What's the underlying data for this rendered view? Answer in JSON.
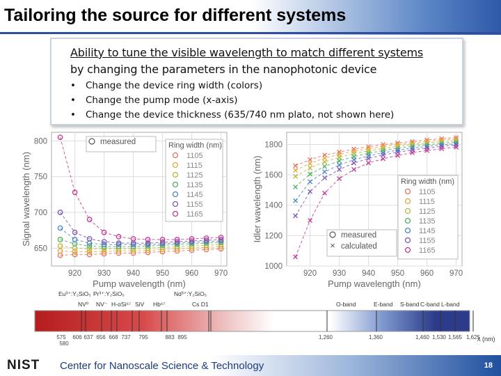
{
  "slide": {
    "title": "Tailoring the source for different systems",
    "callout": {
      "heading_line1": "Ability to tune the visible wavelength to match different systems",
      "heading_line2": "by changing the parameters in the nanophotonic device",
      "bullets": [
        "Change the device ring width (colors)",
        "Change the pump mode (x-axis)",
        "Change the device thickness (635/740 nm plato, not shown here)"
      ]
    },
    "footer": {
      "logo": "NIST",
      "org": "Center for Nanoscale Science & Technology",
      "page_number": "18"
    }
  },
  "chart_data": [
    {
      "type": "scatter",
      "ylabel": "Signal wavelength (nm)",
      "xlabel": "Pump wavelength (nm)",
      "xlim": [
        912,
        972
      ],
      "ylim": [
        625,
        812
      ],
      "x_ticks": [
        920,
        930,
        940,
        950,
        960,
        970
      ],
      "y_ticks": [
        650,
        700,
        750,
        800
      ],
      "legend_markers": [
        "measured"
      ],
      "legend_title": "Ring width (nm)",
      "legend_entries": [
        "1105",
        "1115",
        "1125",
        "1135",
        "1145",
        "1155",
        "1165"
      ],
      "colors": [
        "#e8705a",
        "#e9a53a",
        "#b9b83a",
        "#4fae5a",
        "#4a82c4",
        "#7a56b6",
        "#c2368f"
      ],
      "series": [
        {
          "name": "1105",
          "x": [
            915,
            920,
            925,
            930,
            935,
            940,
            945,
            950,
            955,
            960,
            965,
            970
          ],
          "y": [
            640,
            641,
            641,
            642,
            643,
            643,
            644,
            645,
            646,
            647,
            648,
            649
          ]
        },
        {
          "name": "1115",
          "x": [
            915,
            920,
            925,
            930,
            935,
            940,
            945,
            950,
            955,
            960,
            965,
            970
          ],
          "y": [
            646,
            645,
            645,
            645,
            646,
            646,
            647,
            648,
            649,
            650,
            651,
            652
          ]
        },
        {
          "name": "1125",
          "x": [
            915,
            920,
            925,
            930,
            935,
            940,
            945,
            950,
            955,
            960,
            965,
            970
          ],
          "y": [
            653,
            650,
            649,
            649,
            649,
            649,
            650,
            651,
            652,
            653,
            654,
            655
          ]
        },
        {
          "name": "1135",
          "x": [
            915,
            920,
            925,
            930,
            935,
            940,
            945,
            950,
            955,
            960,
            965,
            970
          ],
          "y": [
            662,
            656,
            653,
            652,
            652,
            652,
            653,
            654,
            655,
            656,
            657,
            658
          ]
        },
        {
          "name": "1145",
          "x": [
            915,
            920,
            925,
            930,
            935,
            940,
            945,
            950,
            955,
            960,
            965,
            970
          ],
          "y": [
            678,
            662,
            657,
            655,
            655,
            655,
            655,
            656,
            657,
            658,
            659,
            660
          ]
        },
        {
          "name": "1155",
          "x": [
            915,
            920,
            925,
            930,
            935,
            940,
            945,
            950,
            955,
            960,
            965,
            970
          ],
          "y": [
            700,
            672,
            663,
            659,
            657,
            657,
            657,
            658,
            659,
            660,
            661,
            662
          ]
        },
        {
          "name": "1165",
          "x": [
            915,
            920,
            925,
            930,
            935,
            940,
            945,
            950,
            955,
            960,
            965,
            970
          ],
          "y": [
            805,
            728,
            690,
            672,
            666,
            663,
            662,
            662,
            662,
            663,
            664,
            665
          ]
        }
      ]
    },
    {
      "type": "scatter",
      "ylabel": "Idler wavelength (nm)",
      "xlabel": "Pump wavelength (nm)",
      "xlim": [
        912,
        972
      ],
      "ylim": [
        1000,
        1880
      ],
      "x_ticks": [
        920,
        930,
        940,
        950,
        960,
        970
      ],
      "y_ticks": [
        1000,
        1200,
        1400,
        1600,
        1800
      ],
      "legend_markers": [
        "measured",
        "calculated"
      ],
      "legend_title": "Ring width (nm)",
      "legend_entries": [
        "1105",
        "1115",
        "1125",
        "1135",
        "1145",
        "1155",
        "1165"
      ],
      "colors": [
        "#e8705a",
        "#e9a53a",
        "#b9b83a",
        "#4fae5a",
        "#4a82c4",
        "#7a56b6",
        "#c2368f"
      ],
      "series": [
        {
          "name": "1105",
          "x": [
            915,
            920,
            925,
            930,
            935,
            940,
            945,
            950,
            955,
            960,
            965,
            970
          ],
          "y": [
            1660,
            1700,
            1730,
            1750,
            1770,
            1785,
            1800,
            1810,
            1820,
            1830,
            1838,
            1845
          ]
        },
        {
          "name": "1115",
          "x": [
            915,
            920,
            925,
            930,
            935,
            940,
            945,
            950,
            955,
            960,
            965,
            970
          ],
          "y": [
            1630,
            1675,
            1710,
            1735,
            1755,
            1772,
            1787,
            1800,
            1810,
            1820,
            1828,
            1835
          ]
        },
        {
          "name": "1125",
          "x": [
            915,
            920,
            925,
            930,
            935,
            940,
            945,
            950,
            955,
            960,
            965,
            970
          ],
          "y": [
            1590,
            1645,
            1685,
            1715,
            1740,
            1758,
            1774,
            1788,
            1800,
            1810,
            1818,
            1825
          ]
        },
        {
          "name": "1135",
          "x": [
            915,
            920,
            925,
            930,
            935,
            940,
            945,
            950,
            955,
            960,
            965,
            970
          ],
          "y": [
            1520,
            1605,
            1655,
            1692,
            1720,
            1742,
            1760,
            1775,
            1788,
            1798,
            1807,
            1815
          ]
        },
        {
          "name": "1145",
          "x": [
            915,
            920,
            925,
            930,
            935,
            940,
            945,
            950,
            955,
            960,
            965,
            970
          ],
          "y": [
            1430,
            1555,
            1620,
            1665,
            1700,
            1725,
            1745,
            1762,
            1776,
            1787,
            1797,
            1805
          ]
        },
        {
          "name": "1155",
          "x": [
            915,
            920,
            925,
            930,
            935,
            940,
            945,
            950,
            955,
            960,
            965,
            970
          ],
          "y": [
            1330,
            1490,
            1580,
            1635,
            1678,
            1708,
            1730,
            1749,
            1764,
            1776,
            1787,
            1796
          ]
        },
        {
          "name": "1165",
          "x": [
            915,
            920,
            925,
            930,
            935,
            940,
            945,
            950,
            955,
            960,
            965,
            970
          ],
          "y": [
            1060,
            1300,
            1480,
            1575,
            1635,
            1678,
            1706,
            1728,
            1746,
            1760,
            1772,
            1782
          ]
        }
      ]
    },
    {
      "type": "other",
      "description_free": true,
      "axis_label": "λ (nm)",
      "top_labels": [
        "Eu³⁺:Y₂SiO₅",
        "Pr³⁺:Y₂SiO₅",
        "Nd³⁺:Y₂SiO₅",
        "NV⁰",
        "NV⁻",
        "H-α",
        "Si⁶⁷",
        "SiV",
        "Hb⁶⁷",
        "Cs D1",
        "O-band",
        "E-band",
        "S-band",
        "C-band",
        "L-band"
      ],
      "tick_values": [
        "575",
        "580",
        "606",
        "637",
        "656",
        "668",
        "737",
        "795",
        "883",
        "895",
        "1,260",
        "1,360",
        "1,460",
        "1,530",
        "1,565",
        "1,625"
      ]
    }
  ]
}
